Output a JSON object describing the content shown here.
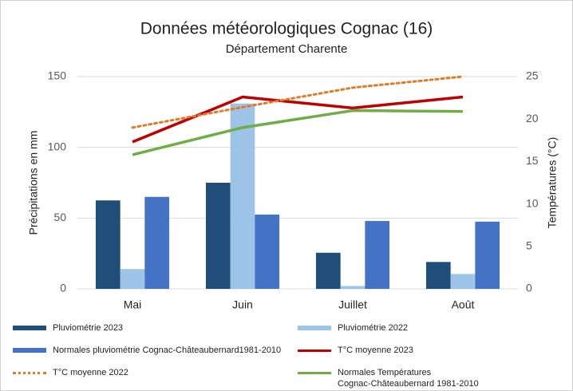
{
  "chart_data": {
    "type": "bar",
    "title": "Données météorologiques Cognac (16)",
    "subtitle": "Département Charente",
    "y_label": "Précipitations en mm",
    "y2_label": "Températures (°C)",
    "categories": [
      "Mai",
      "Juin",
      "Juillet",
      "Août"
    ],
    "ylim": [
      0,
      150
    ],
    "yticks": [
      0,
      50,
      100,
      150
    ],
    "y2lim": [
      0,
      25
    ],
    "y2ticks": [
      0,
      5,
      10,
      15,
      20,
      25
    ],
    "grid": true,
    "legend": "bottom",
    "series": [
      {
        "name": "Pluviométrie 2023",
        "type": "bar",
        "color": "#1f4e79",
        "values": [
          62.5,
          75,
          25.5,
          19
        ]
      },
      {
        "name": "Pluviométrie 2022",
        "type": "bar",
        "color": "#9dc3e6",
        "values": [
          14,
          131,
          2,
          10.5
        ]
      },
      {
        "name": "Normales pluviométrie Cognac-Châteaubernard1981-2010",
        "type": "bar",
        "color": "#4472c4",
        "values": [
          65,
          52.5,
          48,
          47.5
        ]
      },
      {
        "name": "T°C moyenne 2023",
        "type": "line",
        "axis": "y2",
        "color": "#c00000",
        "values": [
          17.3,
          22.6,
          21.3,
          22.6
        ]
      },
      {
        "name": "T°C moyenne 2022",
        "type": "line",
        "axis": "y2",
        "dashed": true,
        "color": "#e07b28",
        "values": [
          19,
          21.4,
          23.7,
          25
        ]
      },
      {
        "name": "Normales Températures\nCognac-Châteaubernard 1981-2010",
        "type": "line",
        "axis": "y2",
        "color": "#70ad47",
        "values": [
          15.8,
          19,
          21,
          20.9
        ]
      }
    ]
  }
}
